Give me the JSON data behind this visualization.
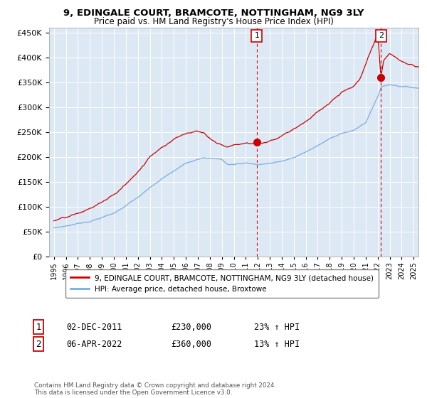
{
  "title": "9, EDINGALE COURT, BRAMCOTE, NOTTINGHAM, NG9 3LY",
  "subtitle": "Price paid vs. HM Land Registry's House Price Index (HPI)",
  "legend_line1": "9, EDINGALE COURT, BRAMCOTE, NOTTINGHAM, NG9 3LY (detached house)",
  "legend_line2": "HPI: Average price, detached house, Broxtowe",
  "annotation1_label": "1",
  "annotation1_date": "02-DEC-2011",
  "annotation1_price": "£230,000",
  "annotation1_hpi": "23% ↑ HPI",
  "annotation2_label": "2",
  "annotation2_date": "06-APR-2022",
  "annotation2_price": "£360,000",
  "annotation2_hpi": "13% ↑ HPI",
  "footer": "Contains HM Land Registry data © Crown copyright and database right 2024.\nThis data is licensed under the Open Government Licence v3.0.",
  "hpi_color": "#7aaddc",
  "price_color": "#cc0000",
  "annotation_color": "#cc0000",
  "background_color": "#dde8f5",
  "ylim": [
    0,
    460000
  ],
  "yticks": [
    0,
    50000,
    100000,
    150000,
    200000,
    250000,
    300000,
    350000,
    400000,
    450000
  ],
  "sale1_year": 2011.92,
  "sale1_price": 230000,
  "sale2_year": 2022.27,
  "sale2_price": 360000,
  "xlim_left": 1994.6,
  "xlim_right": 2025.4
}
